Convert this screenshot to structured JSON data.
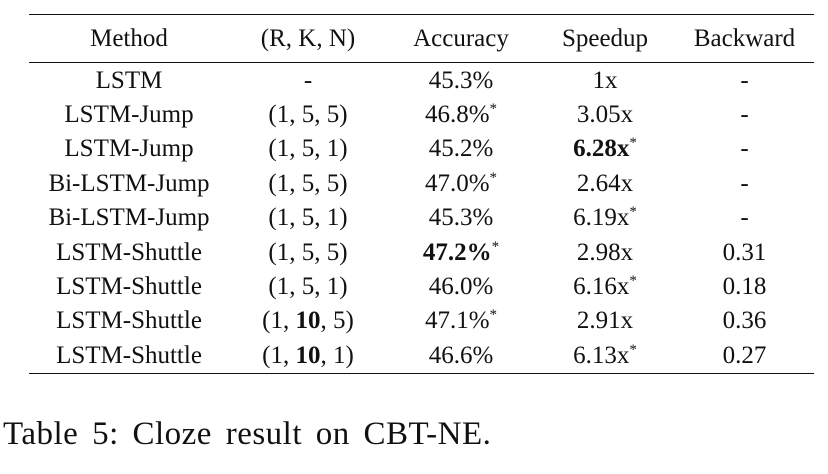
{
  "table": {
    "headers": [
      "Method",
      "(R, K, N)",
      "Accuracy",
      "Speedup",
      "Backward"
    ],
    "rows": [
      {
        "method": "LSTM",
        "rkn": {
          "r": "",
          "k": "",
          "n": "",
          "dash": "-"
        },
        "accuracy": {
          "value": "45.3%",
          "bold": false,
          "star": ""
        },
        "speedup": {
          "value": "1x",
          "bold": false,
          "star": ""
        },
        "backward": "-"
      },
      {
        "method": "LSTM-Jump",
        "rkn": {
          "r": "1",
          "k": "5",
          "n": "5",
          "k_bold": false
        },
        "accuracy": {
          "value": "46.8%",
          "bold": false,
          "star": "*"
        },
        "speedup": {
          "value": "3.05x",
          "bold": false,
          "star": ""
        },
        "backward": "-"
      },
      {
        "method": "LSTM-Jump",
        "rkn": {
          "r": "1",
          "k": "5",
          "n": "1",
          "k_bold": false
        },
        "accuracy": {
          "value": "45.2%",
          "bold": false,
          "star": ""
        },
        "speedup": {
          "value": "6.28x",
          "bold": true,
          "star": "*"
        },
        "backward": "-"
      },
      {
        "method": "Bi-LSTM-Jump",
        "rkn": {
          "r": "1",
          "k": "5",
          "n": "5",
          "k_bold": false
        },
        "accuracy": {
          "value": "47.0%",
          "bold": false,
          "star": "*"
        },
        "speedup": {
          "value": "2.64x",
          "bold": false,
          "star": ""
        },
        "backward": "-"
      },
      {
        "method": "Bi-LSTM-Jump",
        "rkn": {
          "r": "1",
          "k": "5",
          "n": "1",
          "k_bold": false
        },
        "accuracy": {
          "value": "45.3%",
          "bold": false,
          "star": ""
        },
        "speedup": {
          "value": "6.19x",
          "bold": false,
          "star": "*"
        },
        "backward": "-"
      },
      {
        "method": "LSTM-Shuttle",
        "rkn": {
          "r": "1",
          "k": "5",
          "n": "5",
          "k_bold": false
        },
        "accuracy": {
          "value": "47.2%",
          "bold": true,
          "star": "*"
        },
        "speedup": {
          "value": "2.98x",
          "bold": false,
          "star": ""
        },
        "backward": "0.31"
      },
      {
        "method": "LSTM-Shuttle",
        "rkn": {
          "r": "1",
          "k": "5",
          "n": "1",
          "k_bold": false
        },
        "accuracy": {
          "value": "46.0%",
          "bold": false,
          "star": ""
        },
        "speedup": {
          "value": "6.16x",
          "bold": false,
          "star": "*"
        },
        "backward": "0.18"
      },
      {
        "method": "LSTM-Shuttle",
        "rkn": {
          "r": "1",
          "k": "10",
          "n": "5",
          "k_bold": true
        },
        "accuracy": {
          "value": "47.1%",
          "bold": false,
          "star": "*"
        },
        "speedup": {
          "value": "2.91x",
          "bold": false,
          "star": ""
        },
        "backward": "0.36"
      },
      {
        "method": "LSTM-Shuttle",
        "rkn": {
          "r": "1",
          "k": "10",
          "n": "1",
          "k_bold": true
        },
        "accuracy": {
          "value": "46.6%",
          "bold": false,
          "star": ""
        },
        "speedup": {
          "value": "6.13x",
          "bold": false,
          "star": "*"
        },
        "backward": "0.27"
      }
    ]
  },
  "caption": "Table 5: Cloze result on CBT-NE."
}
